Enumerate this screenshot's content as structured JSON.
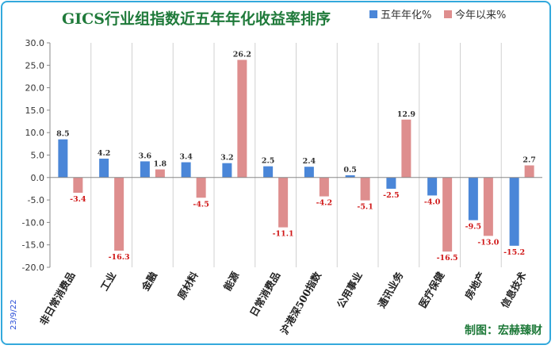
{
  "chart_data": {
    "type": "bar",
    "title": "GICS行业组指数近五年年化收益率排序",
    "categories": [
      "非日常消费品",
      "工业",
      "金融",
      "原材料",
      "能源",
      "日常消费品",
      "沪港深500指数",
      "公用事业",
      "通讯业务",
      "医疗保健",
      "房地产",
      "信息技术"
    ],
    "series": [
      {
        "name": "五年年化%",
        "color": "#4a86d8",
        "values": [
          8.5,
          4.2,
          3.6,
          3.4,
          3.2,
          2.5,
          2.4,
          0.5,
          -2.5,
          -4.0,
          -9.5,
          -15.2
        ],
        "labels": [
          "8.5",
          "4.2",
          "3.6",
          "3.4",
          "3.2",
          "2.5",
          "2.4",
          "0.5",
          "-2.5",
          "-4.0",
          "-9.5",
          "-15.2"
        ]
      },
      {
        "name": "今年以来%",
        "color": "#de8e8e",
        "values": [
          -3.4,
          -16.3,
          1.8,
          -4.5,
          26.2,
          -11.1,
          -4.2,
          -5.1,
          12.9,
          -16.5,
          -13.0,
          2.7
        ],
        "labels": [
          "-3.4",
          "-16.3",
          "1.8",
          "-4.5",
          "26.2",
          "-11.1",
          "-4.2",
          "-5.1",
          "12.9",
          "-16.5",
          "-13.0",
          "2.7"
        ]
      }
    ],
    "ylim": [
      -20,
      30
    ],
    "yticks": [
      30,
      25,
      20,
      15,
      10,
      5,
      0,
      -5,
      -10,
      -15,
      -20
    ],
    "ytick_labels": [
      "30.0",
      "25.0",
      "20.0",
      "15.0",
      "10.0",
      "5.0",
      "0.0",
      "-5.0",
      "-10.0",
      "-15.0",
      "-20.0"
    ],
    "grid": "vertical category separators",
    "legend": "top-right",
    "positive_label_color": "#333333",
    "negative_label_color": "#d01818"
  },
  "footer": {
    "date": "23/9/22",
    "credit": "制图：宏赫臻财"
  }
}
